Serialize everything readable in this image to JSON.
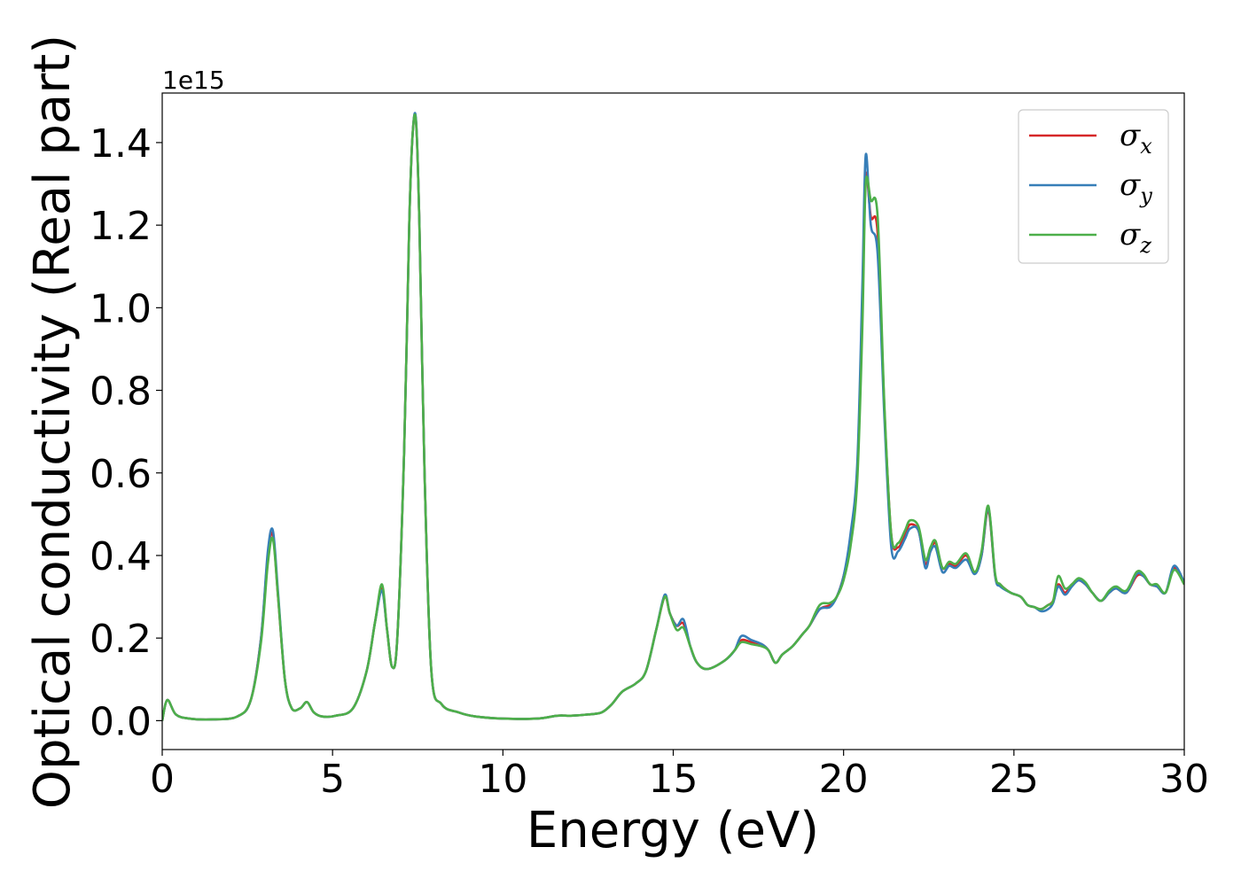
{
  "chart_data": {
    "type": "line",
    "title": "",
    "xlabel": "Energy (eV)",
    "ylabel": "Optical conductivity (Real part)",
    "y_offset_label": "1e15",
    "xlim": [
      0,
      30
    ],
    "ylim": [
      -0.07,
      1.52
    ],
    "xticks": [
      0,
      5,
      10,
      15,
      20,
      25,
      30
    ],
    "yticks": [
      0.0,
      0.2,
      0.4,
      0.6,
      0.8,
      1.0,
      1.2,
      1.4
    ],
    "xtick_labels": [
      "0",
      "5",
      "10",
      "15",
      "20",
      "25",
      "30"
    ],
    "ytick_labels": [
      "0.0",
      "0.2",
      "0.4",
      "0.6",
      "0.8",
      "1.0",
      "1.2",
      "1.4"
    ],
    "grid": false,
    "legend_position": "top-right",
    "x": [
      0,
      0.15,
      0.4,
      0.8,
      1.5,
      2.2,
      2.6,
      2.9,
      3.1,
      3.25,
      3.4,
      3.6,
      3.8,
      4.05,
      4.25,
      4.45,
      4.7,
      5.1,
      5.6,
      6.0,
      6.25,
      6.45,
      6.6,
      6.75,
      6.9,
      7.1,
      7.25,
      7.35,
      7.45,
      7.55,
      7.7,
      7.9,
      8.2,
      8.7,
      9.2,
      10.0,
      11.0,
      11.6,
      12.0,
      12.5,
      12.9,
      13.2,
      13.5,
      13.9,
      14.2,
      14.5,
      14.75,
      14.9,
      15.1,
      15.3,
      15.5,
      15.7,
      16.0,
      16.5,
      16.8,
      17.0,
      17.3,
      17.6,
      17.8,
      18.0,
      18.2,
      18.5,
      18.8,
      19.0,
      19.3,
      19.6,
      19.8,
      20.0,
      20.2,
      20.4,
      20.55,
      20.65,
      20.8,
      21.0,
      21.2,
      21.4,
      21.6,
      21.8,
      21.95,
      22.2,
      22.4,
      22.55,
      22.7,
      22.9,
      23.1,
      23.3,
      23.6,
      23.85,
      24.05,
      24.25,
      24.45,
      24.6,
      24.9,
      25.2,
      25.4,
      25.6,
      25.8,
      26.0,
      26.15,
      26.3,
      26.5,
      26.7,
      26.9,
      27.1,
      27.3,
      27.55,
      27.8,
      28.0,
      28.3,
      28.6,
      28.8,
      29.0,
      29.2,
      29.45,
      29.7,
      30.0
    ],
    "series": [
      {
        "name": "σx",
        "color": "#d62728",
        "values": [
          0.0,
          0.05,
          0.015,
          0.005,
          0.003,
          0.01,
          0.05,
          0.2,
          0.4,
          0.45,
          0.3,
          0.1,
          0.03,
          0.03,
          0.045,
          0.02,
          0.01,
          0.012,
          0.03,
          0.12,
          0.24,
          0.32,
          0.22,
          0.13,
          0.2,
          0.65,
          1.2,
          1.42,
          1.45,
          1.2,
          0.6,
          0.12,
          0.04,
          0.02,
          0.01,
          0.005,
          0.005,
          0.012,
          0.012,
          0.015,
          0.02,
          0.04,
          0.07,
          0.09,
          0.12,
          0.22,
          0.3,
          0.26,
          0.23,
          0.235,
          0.18,
          0.14,
          0.125,
          0.145,
          0.17,
          0.195,
          0.19,
          0.185,
          0.17,
          0.14,
          0.16,
          0.18,
          0.21,
          0.23,
          0.27,
          0.28,
          0.3,
          0.35,
          0.43,
          0.6,
          1.0,
          1.32,
          1.22,
          1.18,
          0.75,
          0.45,
          0.42,
          0.45,
          0.475,
          0.46,
          0.38,
          0.41,
          0.43,
          0.37,
          0.38,
          0.375,
          0.4,
          0.36,
          0.4,
          0.51,
          0.35,
          0.33,
          0.31,
          0.3,
          0.28,
          0.275,
          0.27,
          0.28,
          0.29,
          0.33,
          0.31,
          0.33,
          0.34,
          0.33,
          0.31,
          0.29,
          0.31,
          0.32,
          0.31,
          0.35,
          0.35,
          0.33,
          0.325,
          0.31,
          0.37,
          0.33
        ]
      },
      {
        "name": "σy",
        "color": "#377eb8",
        "values": [
          0.0,
          0.05,
          0.015,
          0.005,
          0.003,
          0.01,
          0.05,
          0.2,
          0.41,
          0.46,
          0.31,
          0.1,
          0.03,
          0.03,
          0.045,
          0.02,
          0.01,
          0.012,
          0.03,
          0.12,
          0.24,
          0.315,
          0.22,
          0.13,
          0.2,
          0.65,
          1.2,
          1.42,
          1.455,
          1.2,
          0.6,
          0.12,
          0.04,
          0.02,
          0.01,
          0.005,
          0.005,
          0.012,
          0.012,
          0.015,
          0.02,
          0.04,
          0.07,
          0.09,
          0.12,
          0.22,
          0.305,
          0.26,
          0.23,
          0.245,
          0.18,
          0.14,
          0.125,
          0.145,
          0.17,
          0.205,
          0.195,
          0.185,
          0.17,
          0.14,
          0.16,
          0.18,
          0.21,
          0.23,
          0.27,
          0.275,
          0.3,
          0.35,
          0.45,
          0.62,
          1.05,
          1.37,
          1.2,
          1.13,
          0.73,
          0.42,
          0.41,
          0.44,
          0.465,
          0.46,
          0.37,
          0.41,
          0.42,
          0.36,
          0.375,
          0.37,
          0.39,
          0.355,
          0.4,
          0.515,
          0.35,
          0.325,
          0.31,
          0.3,
          0.28,
          0.275,
          0.265,
          0.27,
          0.285,
          0.325,
          0.305,
          0.325,
          0.34,
          0.33,
          0.31,
          0.29,
          0.31,
          0.32,
          0.31,
          0.355,
          0.35,
          0.33,
          0.325,
          0.31,
          0.375,
          0.335
        ]
      },
      {
        "name": "σz",
        "color": "#4daf4a",
        "values": [
          0.0,
          0.05,
          0.015,
          0.005,
          0.003,
          0.01,
          0.05,
          0.19,
          0.38,
          0.44,
          0.3,
          0.1,
          0.03,
          0.03,
          0.045,
          0.02,
          0.01,
          0.012,
          0.03,
          0.12,
          0.24,
          0.33,
          0.22,
          0.13,
          0.2,
          0.65,
          1.2,
          1.42,
          1.45,
          1.2,
          0.6,
          0.12,
          0.04,
          0.02,
          0.01,
          0.005,
          0.005,
          0.012,
          0.012,
          0.015,
          0.02,
          0.04,
          0.07,
          0.09,
          0.12,
          0.22,
          0.3,
          0.26,
          0.22,
          0.225,
          0.18,
          0.14,
          0.125,
          0.145,
          0.17,
          0.19,
          0.185,
          0.18,
          0.17,
          0.14,
          0.16,
          0.18,
          0.21,
          0.23,
          0.28,
          0.285,
          0.3,
          0.34,
          0.42,
          0.58,
          0.95,
          1.3,
          1.26,
          1.22,
          0.76,
          0.45,
          0.43,
          0.46,
          0.485,
          0.47,
          0.39,
          0.42,
          0.435,
          0.37,
          0.385,
          0.38,
          0.405,
          0.36,
          0.41,
          0.52,
          0.355,
          0.33,
          0.31,
          0.3,
          0.28,
          0.275,
          0.27,
          0.28,
          0.29,
          0.35,
          0.32,
          0.33,
          0.345,
          0.335,
          0.31,
          0.29,
          0.315,
          0.325,
          0.315,
          0.36,
          0.355,
          0.33,
          0.33,
          0.31,
          0.365,
          0.33
        ]
      }
    ]
  }
}
